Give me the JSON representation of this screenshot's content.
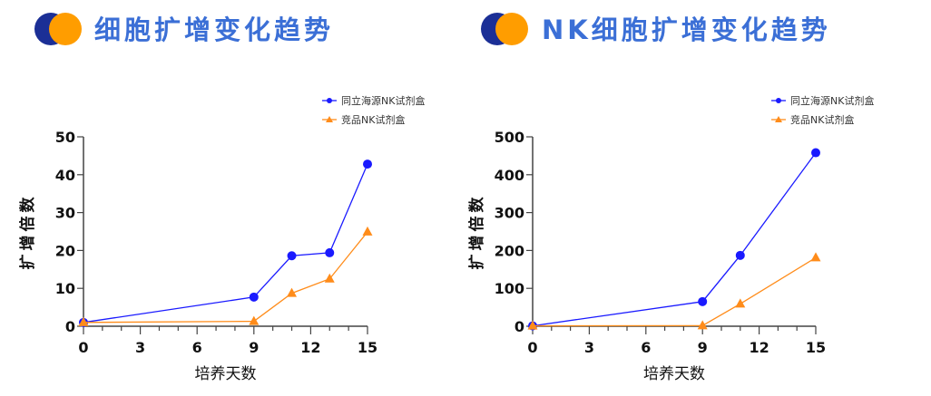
{
  "colors": {
    "blue": "#1a1aff",
    "orange": "#ff8c1a",
    "axis": "#444444",
    "logo_dark": "#1b2f96",
    "logo_orange": "#ff9d00",
    "title": "#3b6fd6"
  },
  "titles": [
    "细胞扩增变化趋势",
    "NK细胞扩增变化趋势"
  ],
  "chart_data": [
    {
      "type": "line",
      "title": "细胞扩增变化趋势",
      "xlabel": "培养天数",
      "ylabel": "扩增倍数",
      "xlim": [
        0,
        15
      ],
      "ylim": [
        0,
        50
      ],
      "xticks": [
        0,
        3,
        6,
        9,
        12,
        15
      ],
      "yticks": [
        0,
        10,
        20,
        30,
        40,
        50
      ],
      "legend": "top-right",
      "series": [
        {
          "name": "同立海源NK试剂盒",
          "marker": "circle",
          "color": "#1a1aff",
          "x": [
            0,
            9,
            11,
            13,
            15
          ],
          "y": [
            1,
            7.7,
            18.6,
            19.4,
            42.8
          ]
        },
        {
          "name": "竞品NK试剂盒",
          "marker": "triangle",
          "color": "#ff8c1a",
          "x": [
            0,
            9,
            11,
            13,
            15
          ],
          "y": [
            1,
            1.3,
            8.7,
            12.5,
            24.9
          ]
        }
      ]
    },
    {
      "type": "line",
      "title": "NK细胞扩增变化趋势",
      "xlabel": "培养天数",
      "ylabel": "扩增倍数",
      "xlim": [
        0,
        15
      ],
      "ylim": [
        0,
        500
      ],
      "xticks": [
        0,
        3,
        6,
        9,
        12,
        15
      ],
      "yticks": [
        0,
        100,
        200,
        300,
        400,
        500
      ],
      "legend": "top-right",
      "series": [
        {
          "name": "同立海源NK试剂盒",
          "marker": "circle",
          "color": "#1a1aff",
          "x": [
            0,
            9,
            11,
            15
          ],
          "y": [
            1,
            65,
            187,
            458
          ]
        },
        {
          "name": "竞品NK试剂盒",
          "marker": "triangle",
          "color": "#ff8c1a",
          "x": [
            0,
            9,
            11,
            15
          ],
          "y": [
            1,
            1.5,
            59,
            181
          ]
        }
      ]
    }
  ]
}
